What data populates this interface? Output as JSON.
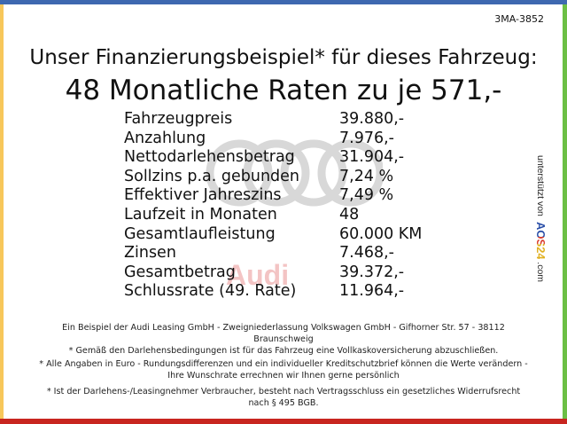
{
  "code": "3MA-3852",
  "title_line1": "Unser Finanzierungsbeispiel* für dieses Fahrzeug:",
  "title_line2": "48 Monatliche Raten zu je 571,-",
  "watermark_text": "Audi",
  "rows": [
    {
      "label": "Fahrzeugpreis",
      "value": "39.880,-"
    },
    {
      "label": "Anzahlung",
      "value": "7.976,-"
    },
    {
      "label": "Nettodarlehensbetrag",
      "value": "31.904,-"
    },
    {
      "label": "Sollzins p.a. gebunden",
      "value": "7,24 %"
    },
    {
      "label": "Effektiver Jahreszins",
      "value": "7,49 %"
    },
    {
      "label": "Laufzeit in Monaten",
      "value": "48"
    },
    {
      "label": "Gesamtlaufleistung",
      "value": "60.000 KM"
    },
    {
      "label": "Zinsen",
      "value": "7.468,-"
    },
    {
      "label": "Gesamtbetrag",
      "value": "39.372,-"
    },
    {
      "label": "Schlussrate (49. Rate)",
      "value": "11.964,-"
    }
  ],
  "side": {
    "prefix": "unterstützt von",
    "brand": "AOS24",
    "suffix": ".com"
  },
  "footer": [
    "Ein Beispiel der Audi Leasing GmbH - Zweigniederlassung Volkswagen GmbH - Gifhorner Str. 57 - 38112 Braunschweig",
    "* Gemäß den Darlehensbedingungen ist für das Fahrzeug eine Vollkaskoversicherung abzuschließen.",
    "* Alle Angaben in Euro - Rundungsdifferenzen und ein individueller Kreditschutzbrief können die Werte verändern - Ihre Wunschrate errechnen wir Ihnen gerne persönlich",
    "* Ist der Darlehens-/Leasingnehmer Verbraucher, besteht nach Vertragsschluss ein gesetzliches Widerrufsrecht nach § 495 BGB."
  ],
  "colors": {
    "top": "#3e68b0",
    "left": "#f7c75a",
    "right": "#6cbf45",
    "bottom": "#c8251f"
  }
}
